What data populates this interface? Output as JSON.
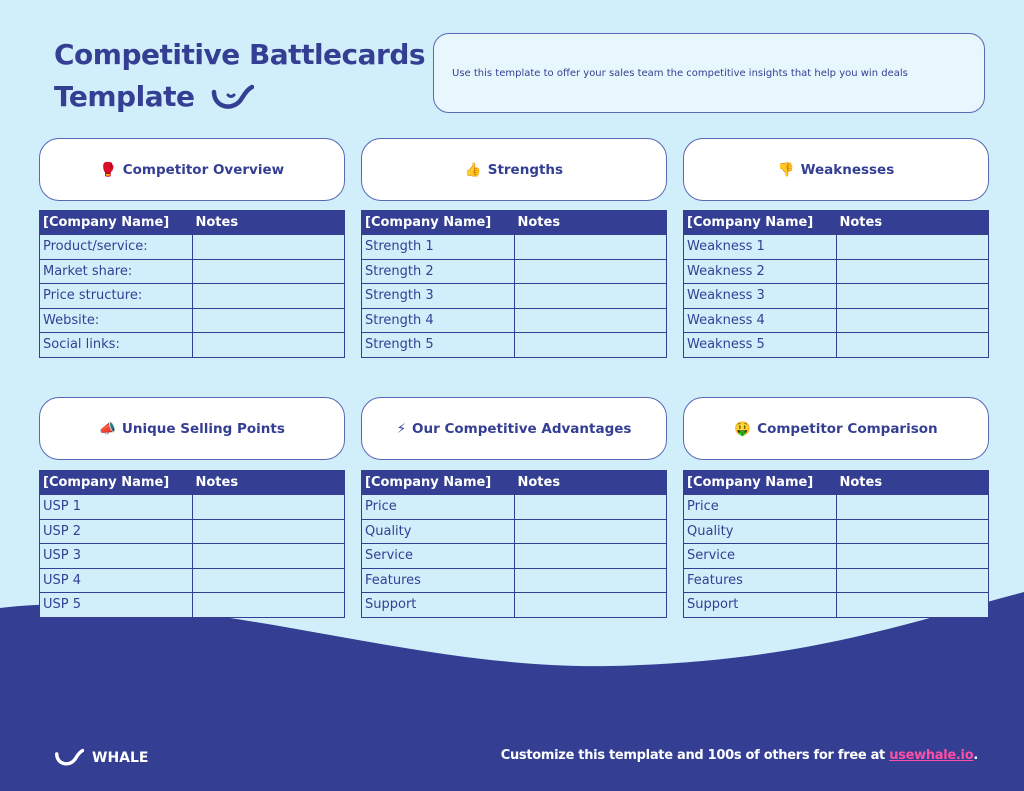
{
  "title_line1": "Competitive Battlecards",
  "title_line2": "Template",
  "description": "Use this template to offer your sales team the competitive insights that help you win deals",
  "sections": [
    {
      "icon": "🥊",
      "icon_name": "boxing-glove-icon",
      "title": "Competitor Overview",
      "headers": [
        "[Company Name]",
        "Notes"
      ],
      "rows": [
        "Product/service:",
        "Market share:",
        "Price structure:",
        "Website:",
        "Social links:"
      ]
    },
    {
      "icon": "👍",
      "icon_name": "thumbs-up-icon",
      "title": "Strengths",
      "headers": [
        "[Company Name]",
        "Notes"
      ],
      "rows": [
        "Strength 1",
        "Strength 2",
        "Strength 3",
        "Strength 4",
        "Strength 5"
      ]
    },
    {
      "icon": "👎",
      "icon_name": "thumbs-down-icon",
      "title": "Weaknesses",
      "headers": [
        "[Company Name]",
        "Notes"
      ],
      "rows": [
        "Weakness 1",
        "Weakness 2",
        "Weakness 3",
        "Weakness 4",
        "Weakness 5"
      ]
    },
    {
      "icon": "📣",
      "icon_name": "megaphone-icon",
      "title": "Unique Selling Points",
      "headers": [
        "[Company Name]",
        "Notes"
      ],
      "rows": [
        "USP 1",
        "USP 2",
        "USP 3",
        "USP 4",
        "USP 5"
      ]
    },
    {
      "icon": "⚡",
      "icon_name": "lightning-icon",
      "title": "Our Competitive Advantages",
      "headers": [
        "[Company Name]",
        "Notes"
      ],
      "rows": [
        "Price",
        "Quality",
        "Service",
        "Features",
        "Support"
      ]
    },
    {
      "icon": "🤑",
      "icon_name": "money-face-icon",
      "title": "Competitor Comparison",
      "headers": [
        "[Company Name]",
        "Notes"
      ],
      "rows": [
        "Price",
        "Quality",
        "Service",
        "Features",
        "Support"
      ]
    }
  ],
  "footer": {
    "brand": "WHALE",
    "cta": "Customize this template and 100s of others for free at ",
    "link": "usewhale.io",
    "end": "."
  },
  "colors": {
    "navy": "#343f93",
    "background": "#d1effb",
    "link": "#ff4fa3"
  }
}
